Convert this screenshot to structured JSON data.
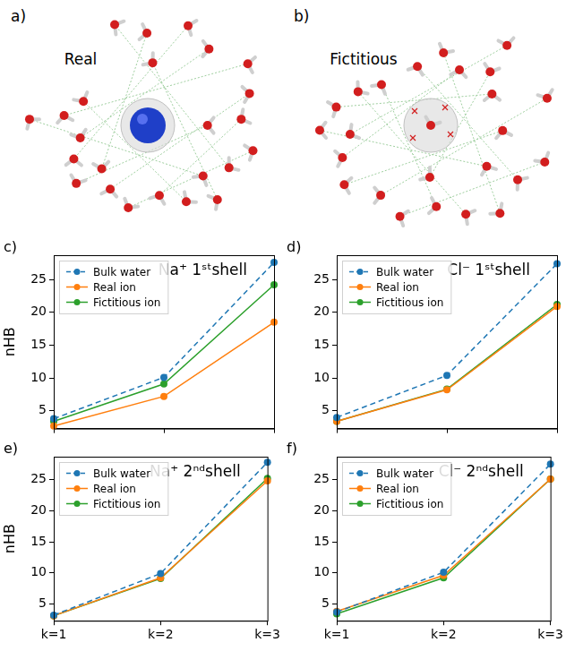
{
  "images": [
    {
      "letter": "a)",
      "label": "Real"
    },
    {
      "letter": "b)",
      "label": "Fictitious"
    }
  ],
  "chart_data": [
    {
      "type": "line",
      "panel": "c)",
      "title": "Na⁺ 1ˢᵗshell",
      "y_label": "nHB",
      "categories": [
        "k=1",
        "k=2",
        "k=3"
      ],
      "series": [
        {
          "name": "Bulk water",
          "color": "#1f77b4",
          "line_style": "dashed",
          "marker": "circle",
          "values": [
            3.8,
            10.1,
            27.6
          ]
        },
        {
          "name": "Real ion",
          "color": "#ff7f0e",
          "line_style": "solid",
          "marker": "circle",
          "values": [
            2.7,
            7.2,
            18.5
          ]
        },
        {
          "name": "Fictitious ion",
          "color": "#2ca02c",
          "line_style": "solid",
          "marker": "circle",
          "values": [
            3.4,
            9.1,
            24.2
          ]
        }
      ],
      "ylim": [
        2.3,
        28.7
      ],
      "yticks": [
        5,
        10,
        15,
        20,
        25
      ],
      "grid": false,
      "legend": "upper left",
      "tick_labels": "y"
    },
    {
      "type": "line",
      "panel": "d)",
      "title": "Cl⁻ 1ˢᵗshell",
      "categories": [
        "k=1",
        "k=2",
        "k=3"
      ],
      "series": [
        {
          "name": "Bulk water",
          "color": "#1f77b4",
          "line_style": "dashed",
          "marker": "circle",
          "values": [
            4.0,
            10.4,
            27.4
          ]
        },
        {
          "name": "Real ion",
          "color": "#ff7f0e",
          "line_style": "solid",
          "marker": "circle",
          "values": [
            3.4,
            8.2,
            20.9
          ]
        },
        {
          "name": "Fictitious ion",
          "color": "#2ca02c",
          "line_style": "solid",
          "marker": "circle",
          "values": [
            3.4,
            8.3,
            21.2
          ]
        }
      ],
      "ylim": [
        2.3,
        28.7
      ],
      "yticks": [
        5,
        10,
        15,
        20,
        25
      ],
      "grid": false,
      "legend": "upper left",
      "tick_labels": "y"
    },
    {
      "type": "line",
      "panel": "e)",
      "title": "Na⁺ 2ⁿᵈshell",
      "y_label": "nHB",
      "categories": [
        "k=1",
        "k=2",
        "k=3"
      ],
      "series": [
        {
          "name": "Bulk water",
          "color": "#1f77b4",
          "line_style": "dashed",
          "marker": "circle",
          "values": [
            3.2,
            9.9,
            27.8
          ]
        },
        {
          "name": "Real ion",
          "color": "#ff7f0e",
          "line_style": "solid",
          "marker": "circle",
          "values": [
            3.1,
            9.2,
            24.8
          ]
        },
        {
          "name": "Fictitious ion",
          "color": "#2ca02c",
          "line_style": "solid",
          "marker": "circle",
          "values": [
            3.1,
            9.1,
            25.2
          ]
        }
      ],
      "ylim": [
        2.3,
        28.7
      ],
      "yticks": [
        5,
        10,
        15,
        20,
        25
      ],
      "grid": false,
      "legend": "upper left"
    },
    {
      "type": "line",
      "panel": "f)",
      "title": "Cl⁻ 2ⁿᵈshell",
      "categories": [
        "k=1",
        "k=2",
        "k=3"
      ],
      "series": [
        {
          "name": "Bulk water",
          "color": "#1f77b4",
          "line_style": "dashed",
          "marker": "circle",
          "values": [
            3.7,
            10.1,
            27.5
          ]
        },
        {
          "name": "Real ion",
          "color": "#ff7f0e",
          "line_style": "solid",
          "marker": "circle",
          "values": [
            3.8,
            9.6,
            25.1
          ]
        },
        {
          "name": "Fictitious ion",
          "color": "#2ca02c",
          "line_style": "solid",
          "marker": "circle",
          "values": [
            3.4,
            9.2,
            25.1
          ]
        }
      ],
      "ylim": [
        2.3,
        28.7
      ],
      "yticks": [
        5,
        10,
        15,
        20,
        25
      ],
      "grid": false,
      "legend": "upper left"
    }
  ]
}
